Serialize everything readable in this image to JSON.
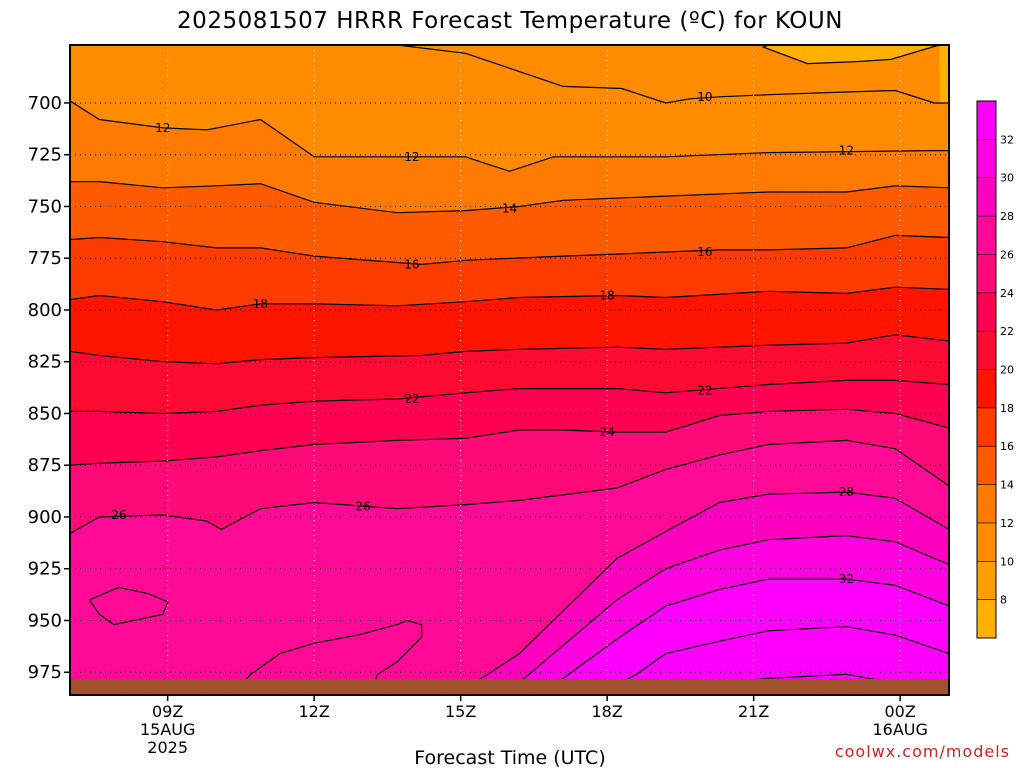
{
  "chart_data": {
    "type": "heatmap",
    "title": "2025081507 HRRR Forecast Temperature (ºC) for KOUN",
    "xlabel": "Forecast Time (UTC)",
    "ylabel": "",
    "y_scale": "pressure (inverted, hPa)",
    "y_ticks": [
      700,
      725,
      750,
      775,
      800,
      825,
      850,
      875,
      900,
      925,
      950,
      975
    ],
    "x_ticks": [
      {
        "label": "09Z",
        "sub": [
          "15AUG",
          "2025"
        ]
      },
      {
        "label": "12Z",
        "sub": []
      },
      {
        "label": "15Z",
        "sub": []
      },
      {
        "label": "18Z",
        "sub": []
      },
      {
        "label": "21Z",
        "sub": []
      },
      {
        "label": "00Z",
        "sub": [
          "16AUG"
        ]
      }
    ],
    "x_range": [
      "07Z 15AUG",
      "01Z 16AUG"
    ],
    "y_range": [
      986,
      672
    ],
    "grid": true,
    "colorbar": {
      "position": "right",
      "levels": [
        8,
        10,
        12,
        14,
        16,
        18,
        20,
        22,
        24,
        26,
        28,
        30,
        32
      ],
      "colors": [
        "#ffb000",
        "#ff9e00",
        "#ff8c00",
        "#ff7a00",
        "#ff5a00",
        "#ff3c00",
        "#ff1400",
        "#ff0a32",
        "#ff0055",
        "#ff0a78",
        "#ff0a96",
        "#ff00be",
        "#ff00e1",
        "#ff00ff"
      ]
    },
    "contours": [
      {
        "value": 10,
        "label": "10",
        "points": [
          [
            7.4,
            672
          ],
          [
            8.9,
            672
          ],
          [
            10.1,
            672
          ],
          [
            12.2,
            672
          ],
          [
            13.7,
            672
          ],
          [
            15.1,
            676
          ],
          [
            17.1,
            692
          ],
          [
            18.3,
            693
          ],
          [
            19.2,
            700
          ],
          [
            19.7,
            698
          ],
          [
            20.3,
            697
          ],
          [
            21.3,
            696
          ],
          [
            22.5,
            695
          ],
          [
            23.9,
            694
          ],
          [
            24.7,
            700
          ],
          [
            25.0,
            700
          ]
        ]
      },
      {
        "value": 10,
        "label": "",
        "points": [
          [
            21.3,
            672
          ],
          [
            21.2,
            673
          ],
          [
            22.1,
            681
          ],
          [
            23.1,
            680
          ],
          [
            23.8,
            679
          ],
          [
            24.8,
            672
          ]
        ]
      },
      {
        "value": 12,
        "label": "12",
        "points": [
          [
            7.0,
            699
          ],
          [
            7.6,
            708
          ],
          [
            8.9,
            712
          ],
          [
            9.8,
            713
          ],
          [
            10.9,
            708
          ],
          [
            12.0,
            726
          ],
          [
            13.7,
            726
          ],
          [
            15.1,
            726
          ],
          [
            16.0,
            733
          ],
          [
            16.9,
            726
          ],
          [
            19.2,
            726
          ],
          [
            21.3,
            724
          ],
          [
            24.7,
            723
          ],
          [
            25.0,
            723
          ]
        ]
      },
      {
        "value": 14,
        "label": "14",
        "points": [
          [
            7.0,
            738
          ],
          [
            7.6,
            738
          ],
          [
            8.9,
            741
          ],
          [
            10.0,
            740
          ],
          [
            10.9,
            739
          ],
          [
            12.0,
            748
          ],
          [
            13.7,
            753
          ],
          [
            15.1,
            752
          ],
          [
            16.2,
            750
          ],
          [
            17.1,
            747
          ],
          [
            19.2,
            745
          ],
          [
            21.3,
            743
          ],
          [
            22.9,
            743
          ],
          [
            23.9,
            740
          ],
          [
            25.0,
            741
          ]
        ]
      },
      {
        "value": 16,
        "label": "16",
        "points": [
          [
            7.0,
            766
          ],
          [
            7.6,
            765
          ],
          [
            8.9,
            767
          ],
          [
            10.0,
            770
          ],
          [
            10.9,
            770
          ],
          [
            12.0,
            774
          ],
          [
            14.2,
            778
          ],
          [
            15.1,
            776
          ],
          [
            17.1,
            774
          ],
          [
            18.2,
            773
          ],
          [
            19.2,
            772
          ],
          [
            20.3,
            771
          ],
          [
            21.3,
            771
          ],
          [
            22.9,
            770
          ],
          [
            23.9,
            764
          ],
          [
            25.0,
            765
          ]
        ]
      },
      {
        "value": 18,
        "label": "18",
        "points": [
          [
            7.0,
            795
          ],
          [
            7.6,
            793
          ],
          [
            8.9,
            796
          ],
          [
            10.0,
            800
          ],
          [
            10.9,
            797
          ],
          [
            12.0,
            797
          ],
          [
            13.7,
            798
          ],
          [
            15.1,
            796
          ],
          [
            16.2,
            794
          ],
          [
            18.2,
            793
          ],
          [
            19.2,
            794
          ],
          [
            21.3,
            791
          ],
          [
            22.9,
            792
          ],
          [
            23.9,
            789
          ],
          [
            25.0,
            790
          ]
        ]
      },
      {
        "value": 20,
        "label": "",
        "points": [
          [
            7.0,
            820
          ],
          [
            7.6,
            822
          ],
          [
            8.9,
            825
          ],
          [
            10.0,
            826
          ],
          [
            10.9,
            824
          ],
          [
            12.0,
            823
          ],
          [
            14.2,
            822
          ],
          [
            15.1,
            820
          ],
          [
            16.2,
            819
          ],
          [
            18.2,
            818
          ],
          [
            19.2,
            819
          ],
          [
            20.3,
            818
          ],
          [
            21.3,
            817
          ],
          [
            22.9,
            816
          ],
          [
            23.9,
            812
          ],
          [
            25.0,
            815
          ]
        ]
      },
      {
        "value": 22,
        "label": "22",
        "points": [
          [
            7.0,
            849
          ],
          [
            7.6,
            849
          ],
          [
            8.9,
            850
          ],
          [
            10.0,
            849
          ],
          [
            10.9,
            846
          ],
          [
            12.0,
            844
          ],
          [
            13.7,
            843
          ],
          [
            15.1,
            840
          ],
          [
            16.2,
            838
          ],
          [
            18.2,
            838
          ],
          [
            19.2,
            840
          ],
          [
            21.3,
            836
          ],
          [
            22.9,
            834
          ],
          [
            23.9,
            834
          ],
          [
            25.0,
            836
          ]
        ]
      },
      {
        "value": 24,
        "label": "24",
        "points": [
          [
            7.0,
            875
          ],
          [
            7.6,
            874
          ],
          [
            8.9,
            873
          ],
          [
            10.0,
            871
          ],
          [
            10.9,
            868
          ],
          [
            12.0,
            865
          ],
          [
            13.7,
            863
          ],
          [
            15.1,
            862
          ],
          [
            16.2,
            858
          ],
          [
            17.1,
            858
          ],
          [
            18.2,
            859
          ],
          [
            19.2,
            859
          ],
          [
            20.3,
            851
          ],
          [
            21.3,
            849
          ],
          [
            22.9,
            848
          ],
          [
            23.9,
            850
          ],
          [
            25.0,
            857
          ]
        ]
      },
      {
        "value": 26,
        "label": "26",
        "points": [
          [
            7.0,
            908
          ],
          [
            7.6,
            900
          ],
          [
            8.9,
            899
          ],
          [
            9.8,
            902
          ],
          [
            10.1,
            906
          ],
          [
            10.9,
            896
          ],
          [
            12.0,
            893
          ],
          [
            13.7,
            896
          ],
          [
            15.1,
            894
          ],
          [
            16.2,
            892
          ],
          [
            18.2,
            886
          ],
          [
            19.2,
            877
          ],
          [
            20.3,
            870
          ],
          [
            21.3,
            865
          ],
          [
            22.9,
            863
          ],
          [
            23.9,
            867
          ],
          [
            25.0,
            885
          ]
        ]
      },
      {
        "value": 28,
        "label": "28",
        "points": [
          [
            14.9,
            986
          ],
          [
            16.2,
            966
          ],
          [
            18.2,
            920
          ],
          [
            19.2,
            907
          ],
          [
            20.3,
            893
          ],
          [
            21.3,
            889
          ],
          [
            22.9,
            888
          ],
          [
            23.9,
            891
          ],
          [
            25.0,
            906
          ]
        ]
      },
      {
        "value": 30,
        "label": "",
        "points": [
          [
            15.6,
            986
          ],
          [
            16.3,
            978
          ],
          [
            17.2,
            960
          ],
          [
            18.2,
            940
          ],
          [
            19.2,
            925
          ],
          [
            20.3,
            916
          ],
          [
            21.3,
            911
          ],
          [
            22.9,
            909
          ],
          [
            23.9,
            912
          ],
          [
            25.0,
            923
          ]
        ]
      },
      {
        "value": 32,
        "label": "32",
        "points": [
          [
            16.5,
            986
          ],
          [
            17.1,
            978
          ],
          [
            18.2,
            959
          ],
          [
            19.2,
            943
          ],
          [
            20.3,
            935
          ],
          [
            21.3,
            930
          ],
          [
            22.9,
            930
          ],
          [
            23.9,
            933
          ],
          [
            25.0,
            943
          ]
        ]
      },
      {
        "value": 32,
        "label": "",
        "points": [
          [
            17.8,
            986
          ],
          [
            18.6,
            976
          ],
          [
            19.2,
            966
          ],
          [
            20.3,
            960
          ],
          [
            21.3,
            955
          ],
          [
            22.9,
            953
          ],
          [
            23.9,
            957
          ],
          [
            25.0,
            966
          ]
        ]
      },
      {
        "value": 32,
        "label": "",
        "points": [
          [
            19.6,
            986
          ],
          [
            20.4,
            980
          ],
          [
            21.3,
            978
          ],
          [
            22.9,
            976
          ],
          [
            23.6,
            979
          ],
          [
            24.7,
            983
          ]
        ]
      },
      {
        "value": 26,
        "label": "",
        "points": [
          [
            7.4,
            940
          ],
          [
            8.0,
            934
          ],
          [
            8.6,
            937
          ],
          [
            9.0,
            941
          ],
          [
            8.9,
            947
          ],
          [
            7.9,
            952
          ],
          [
            7.6,
            947
          ],
          [
            7.4,
            940
          ]
        ]
      },
      {
        "value": 26,
        "label": "",
        "points": [
          [
            10.3,
            986
          ],
          [
            10.7,
            976
          ],
          [
            11.3,
            966
          ],
          [
            12.0,
            961
          ],
          [
            12.9,
            957
          ],
          [
            13.7,
            952
          ],
          [
            13.9,
            950
          ],
          [
            14.2,
            952
          ],
          [
            14.2,
            958
          ],
          [
            13.7,
            970
          ],
          [
            13.3,
            976
          ],
          [
            13.1,
            986
          ]
        ]
      }
    ],
    "contour_labels": [
      {
        "value": "12",
        "x": 8.9,
        "y": 712
      },
      {
        "value": "12",
        "x": 14.0,
        "y": 726
      },
      {
        "value": "12",
        "x": 22.9,
        "y": 723
      },
      {
        "value": "10",
        "x": 20.0,
        "y": 697
      },
      {
        "value": "14",
        "x": 16.0,
        "y": 751
      },
      {
        "value": "16",
        "x": 14.0,
        "y": 778
      },
      {
        "value": "16",
        "x": 20.0,
        "y": 772
      },
      {
        "value": "18",
        "x": 10.9,
        "y": 797
      },
      {
        "value": "18",
        "x": 18.0,
        "y": 793
      },
      {
        "value": "22",
        "x": 14.0,
        "y": 843
      },
      {
        "value": "22",
        "x": 20.0,
        "y": 839
      },
      {
        "value": "24",
        "x": 18.0,
        "y": 859
      },
      {
        "value": "26",
        "x": 8.0,
        "y": 899
      },
      {
        "value": "26",
        "x": 13.0,
        "y": 895
      },
      {
        "value": "28",
        "x": 22.9,
        "y": 888
      },
      {
        "value": "32",
        "x": 22.9,
        "y": 930
      }
    ]
  },
  "credit": "coolwx.com/models"
}
